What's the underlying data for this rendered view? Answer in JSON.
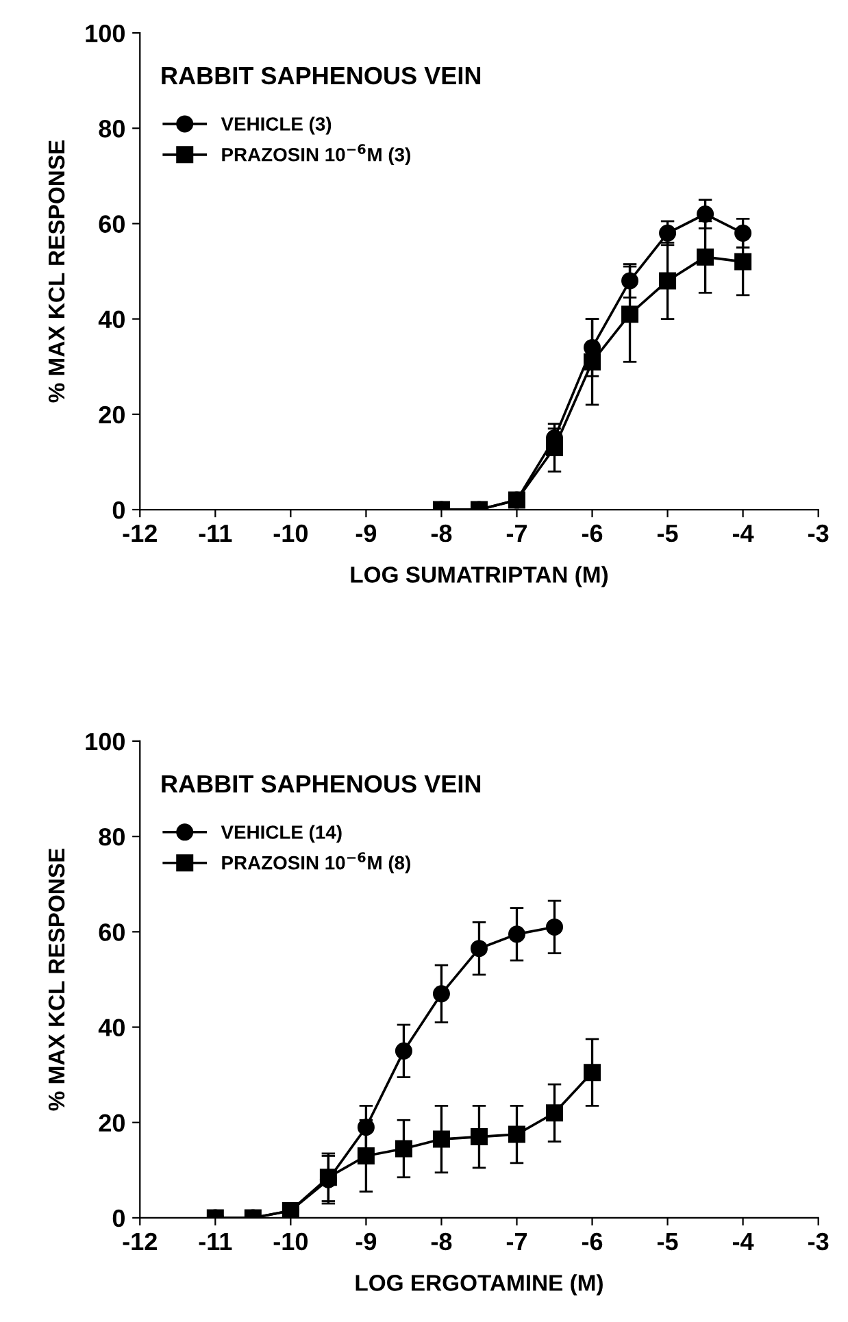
{
  "chart_data": [
    {
      "type": "line",
      "title": "RABBIT SAPHENOUS VEIN",
      "xlabel": "LOG SUMATRIPTAN (M)",
      "ylabel": "% MAX KCL RESPONSE",
      "x": [
        -8,
        -7.5,
        -7,
        -6.5,
        -6,
        -5.5,
        -5,
        -4.5,
        -4
      ],
      "series": [
        {
          "name": "VEHICLE (3)",
          "color": "#000000",
          "marker": "circle",
          "values": [
            0,
            0,
            2,
            15,
            34,
            48,
            58,
            62,
            58
          ],
          "errors": [
            null,
            null,
            null,
            2,
            6,
            3.5,
            2.5,
            3,
            3
          ]
        },
        {
          "name": "PRAZOSIN 10$^{−6}$M (3)",
          "color": "#000000",
          "marker": "square",
          "values": [
            0,
            0,
            2,
            13,
            31,
            41,
            48,
            53,
            52
          ],
          "errors": [
            null,
            null,
            null,
            5,
            9,
            10,
            8,
            7.5,
            7
          ]
        }
      ],
      "xlim": [
        -12,
        -3
      ],
      "xticks": [
        -12,
        -11,
        -10,
        -9,
        -8,
        -7,
        -6,
        -5,
        -4,
        -3
      ],
      "ylim": [
        0,
        100
      ],
      "yticks": [
        0,
        20,
        40,
        60,
        80,
        100
      ],
      "legend": "top left",
      "grid": false,
      "line_style": "solid"
    },
    {
      "type": "line",
      "title": "RABBIT SAPHENOUS VEIN",
      "xlabel": "LOG ERGOTAMINE (M)",
      "ylabel": "% MAX KCL RESPONSE",
      "x": [
        -11,
        -10.5,
        -10,
        -9.5,
        -9,
        -8.5,
        -8,
        -7.5,
        -7,
        -6.5,
        -6
      ],
      "series": [
        {
          "name": "VEHICLE (14)",
          "color": "#000000",
          "marker": "circle",
          "values": [
            0,
            0,
            1.5,
            8,
            19,
            35,
            47,
            56.5,
            59.5,
            61,
            null
          ],
          "errors": [
            null,
            null,
            null,
            5,
            4.5,
            5.5,
            6,
            5.5,
            5.5,
            5.5,
            null
          ]
        },
        {
          "name": "PRAZOSIN 10$^{−6}$M (8)",
          "color": "#000000",
          "marker": "square",
          "values": [
            0,
            0,
            1.5,
            8.5,
            13,
            14.5,
            16.5,
            17,
            17.5,
            22,
            30.5
          ],
          "errors": [
            null,
            null,
            null,
            5,
            7.5,
            6,
            7,
            6.5,
            6,
            6,
            7
          ]
        }
      ],
      "xlim": [
        -12,
        -3
      ],
      "xticks": [
        -12,
        -11,
        -10,
        -9,
        -8,
        -7,
        -6,
        -5,
        -4,
        -3
      ],
      "ylim": [
        0,
        100
      ],
      "yticks": [
        0,
        20,
        40,
        60,
        80,
        100
      ],
      "legend": "top left",
      "grid": false,
      "line_style": "solid"
    }
  ]
}
